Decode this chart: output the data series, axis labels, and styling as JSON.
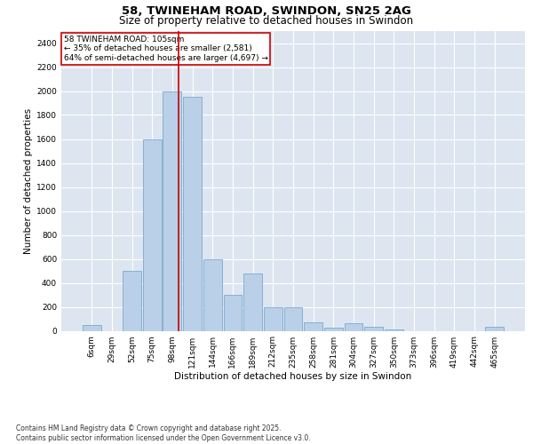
{
  "title_line1": "58, TWINEHAM ROAD, SWINDON, SN25 2AG",
  "title_line2": "Size of property relative to detached houses in Swindon",
  "xlabel": "Distribution of detached houses by size in Swindon",
  "ylabel": "Number of detached properties",
  "footer_line1": "Contains HM Land Registry data © Crown copyright and database right 2025.",
  "footer_line2": "Contains public sector information licensed under the Open Government Licence v3.0.",
  "annotation_line1": "58 TWINEHAM ROAD: 105sqm",
  "annotation_line2": "← 35% of detached houses are smaller (2,581)",
  "annotation_line3": "64% of semi-detached houses are larger (4,697) →",
  "bar_color": "#bad0e8",
  "bar_edge_color": "#6a9fc8",
  "vline_color": "#cc0000",
  "background_color": "#dde6f0",
  "grid_color": "#ffffff",
  "categories": [
    "6sqm",
    "29sqm",
    "52sqm",
    "75sqm",
    "98sqm",
    "121sqm",
    "144sqm",
    "166sqm",
    "189sqm",
    "212sqm",
    "235sqm",
    "258sqm",
    "281sqm",
    "304sqm",
    "327sqm",
    "350sqm",
    "373sqm",
    "396sqm",
    "419sqm",
    "442sqm",
    "465sqm"
  ],
  "values": [
    50,
    0,
    500,
    1600,
    2000,
    1950,
    600,
    300,
    475,
    200,
    195,
    70,
    25,
    60,
    30,
    10,
    0,
    0,
    0,
    0,
    30
  ],
  "ylim": [
    0,
    2500
  ],
  "yticks": [
    0,
    200,
    400,
    600,
    800,
    1000,
    1200,
    1400,
    1600,
    1800,
    2000,
    2200,
    2400
  ],
  "title_fontsize": 9.5,
  "subtitle_fontsize": 8.5,
  "axis_label_fontsize": 7.5,
  "tick_fontsize": 6.5,
  "annot_fontsize": 6.5,
  "footer_fontsize": 5.5
}
